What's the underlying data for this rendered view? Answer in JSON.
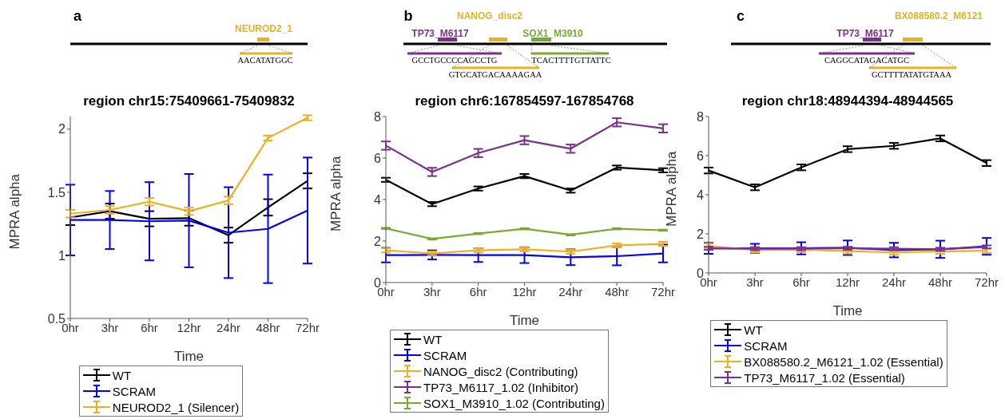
{
  "chart_data": [
    {
      "type": "line",
      "title": "region chr15:75409661-75409832",
      "xlabel": "Time",
      "ylabel": "MPRA alpha",
      "categories": [
        "0hr",
        "3hr",
        "6hr",
        "12hr",
        "24hr",
        "48hr",
        "72hr"
      ],
      "ylim": [
        0.5,
        2.1
      ],
      "yticks": [
        0.5,
        1,
        1.5,
        2
      ],
      "legend": "bottom",
      "marker": "none",
      "annotations": [
        "a",
        "NEUROD2_1",
        "AACATATGGC"
      ],
      "series": [
        {
          "name": "WT",
          "color": "#000000",
          "values": [
            1.3,
            1.35,
            1.29,
            1.295,
            1.16,
            1.38,
            1.59
          ],
          "errors": [
            0.06,
            0.06,
            0.06,
            0.06,
            0.06,
            0.065,
            0.06
          ]
        },
        {
          "name": "SCRAM",
          "color": "#0000ff",
          "values": [
            1.28,
            1.28,
            1.27,
            1.275,
            1.18,
            1.21,
            1.355
          ],
          "errors": [
            0.28,
            0.23,
            0.31,
            0.37,
            0.36,
            0.43,
            0.42
          ]
        },
        {
          "name": "NEUROD2_1 (Silencer)",
          "color": "#edb120",
          "values": [
            1.33,
            1.36,
            1.425,
            1.35,
            1.435,
            1.93,
            2.09
          ],
          "errors": [
            0.03,
            0.03,
            0.03,
            0.03,
            0.03,
            0.02,
            0.02
          ]
        }
      ]
    },
    {
      "type": "line",
      "title": "region chr6:167854597-167854768",
      "xlabel": "Time",
      "ylabel": "MPRA alpha",
      "categories": [
        "0hr",
        "3hr",
        "6hr",
        "12hr",
        "24hr",
        "48hr",
        "72hr"
      ],
      "ylim": [
        0,
        8
      ],
      "yticks": [
        0,
        2,
        4,
        6,
        8
      ],
      "legend": "bottom",
      "marker": "none",
      "annotations": [
        "b",
        "TP73_M6117",
        "NANOG_disc2",
        "SOX1_M3910",
        "GCCTGCCCCAGCCTG",
        "GTGCATGACAAAAGAA",
        "TCACTTTTGTTATTC"
      ],
      "series": [
        {
          "name": "WT",
          "color": "#000000",
          "values": [
            4.95,
            3.78,
            4.53,
            5.13,
            4.43,
            5.54,
            5.41
          ],
          "errors": [
            0.1,
            0.1,
            0.1,
            0.1,
            0.1,
            0.1,
            0.1
          ]
        },
        {
          "name": "SCRAM",
          "color": "#0000ff",
          "values": [
            1.32,
            1.33,
            1.32,
            1.32,
            1.22,
            1.27,
            1.4
          ],
          "errors": [
            0.35,
            0.22,
            0.33,
            0.38,
            0.38,
            0.44,
            0.43
          ]
        },
        {
          "name": "NANOG_disc2 (Contributing)",
          "color": "#edb120",
          "values": [
            1.55,
            1.4,
            1.55,
            1.6,
            1.49,
            1.79,
            1.86
          ],
          "errors": [
            0.1,
            0.1,
            0.1,
            0.1,
            0.1,
            0.1,
            0.1
          ]
        },
        {
          "name": "TP73_M6117_1.02 (Inhibitor)",
          "color": "#7e2f8e",
          "values": [
            6.6,
            5.33,
            6.24,
            6.86,
            6.45,
            7.72,
            7.43
          ],
          "errors": [
            0.2,
            0.2,
            0.2,
            0.2,
            0.2,
            0.2,
            0.2
          ]
        },
        {
          "name": "SOX1_M3910_1.02 (Contributing)",
          "color": "#77ac30",
          "values": [
            2.61,
            2.1,
            2.36,
            2.59,
            2.3,
            2.59,
            2.52
          ],
          "errors": [
            0.03,
            0.03,
            0.03,
            0.03,
            0.03,
            0.03,
            0.03
          ]
        }
      ]
    },
    {
      "type": "line",
      "title": "region chr18:48944394-48944565",
      "xlabel": "Time",
      "ylabel": "MPRA alpha",
      "categories": [
        "0hr",
        "3hr",
        "6hr",
        "12hr",
        "24hr",
        "48hr",
        "72hr"
      ],
      "ylim": [
        0,
        8
      ],
      "yticks": [
        0,
        2,
        4,
        6,
        8
      ],
      "legend": "bottom",
      "marker": "none",
      "annotations": [
        "c",
        "TP73_M6117",
        "BX088580.2_M6121",
        "CAGGCATAGACATGC",
        "GCTTTTATATGTAAA"
      ],
      "series": [
        {
          "name": "WT",
          "color": "#000000",
          "values": [
            5.24,
            4.38,
            5.4,
            6.33,
            6.5,
            6.88,
            5.62
          ],
          "errors": [
            0.15,
            0.15,
            0.15,
            0.15,
            0.15,
            0.15,
            0.15
          ]
        },
        {
          "name": "SCRAM",
          "color": "#0000ff",
          "values": [
            1.26,
            1.26,
            1.26,
            1.29,
            1.17,
            1.21,
            1.36
          ],
          "errors": [
            0.28,
            0.23,
            0.31,
            0.37,
            0.37,
            0.44,
            0.43
          ]
        },
        {
          "name": "BX088580.2_M6121_1.02 (Essential)",
          "color": "#edb120",
          "values": [
            1.38,
            1.17,
            1.19,
            1.12,
            1.05,
            1.1,
            1.14
          ],
          "errors": [
            0.12,
            0.12,
            0.12,
            0.12,
            0.12,
            0.12,
            0.12
          ]
        },
        {
          "name": "TP73_M6117_1.02 (Essential)",
          "color": "#7e2f8e",
          "values": [
            1.26,
            1.24,
            1.24,
            1.26,
            1.24,
            1.21,
            1.33
          ],
          "errors": [
            0.08,
            0.08,
            0.08,
            0.08,
            0.08,
            0.08,
            0.08
          ]
        }
      ]
    }
  ]
}
